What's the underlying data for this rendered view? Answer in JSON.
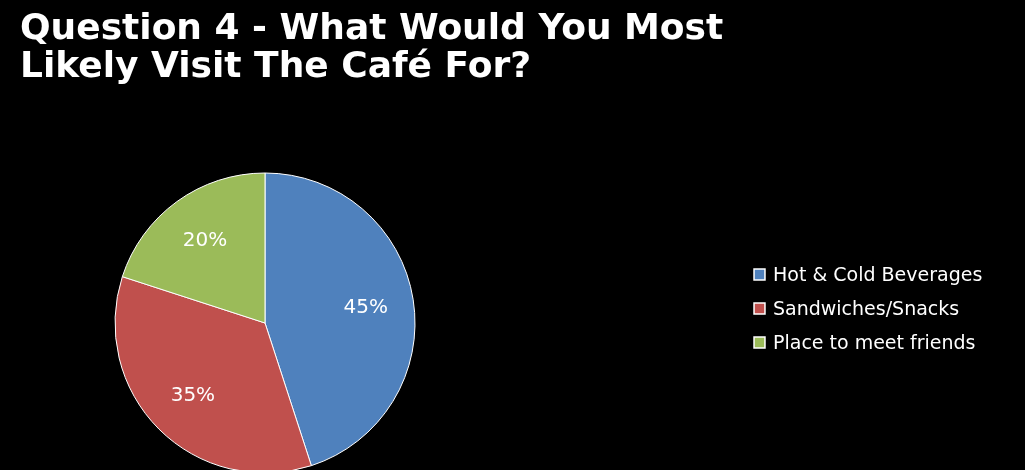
{
  "chart_data": {
    "type": "pie",
    "title": "Question 4 - What Would You Most Likely Visit The Café For?",
    "categories": [
      "Hot & Cold Beverages",
      "Sandwiches/Snacks",
      "Place to meet friends"
    ],
    "values": [
      45,
      35,
      20
    ],
    "colors": [
      "#4f81bd",
      "#c0504d",
      "#9bbb59"
    ],
    "value_labels": [
      "45%",
      "35%",
      "20%"
    ],
    "legend": "right"
  }
}
